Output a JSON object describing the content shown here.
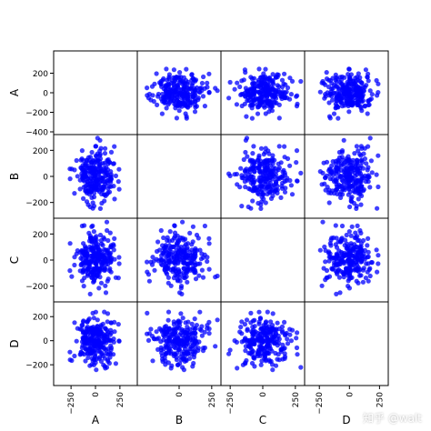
{
  "chart_data": {
    "type": "scatter",
    "kind": "scatter-matrix",
    "variables": [
      "A",
      "B",
      "C",
      "D"
    ],
    "diagonal": "empty",
    "point_color": "#0000ff",
    "point_alpha": 0.75,
    "ranges": {
      "A": [
        -400,
        400
      ],
      "B": [
        -300,
        300
      ],
      "C": [
        -300,
        300
      ],
      "D": [
        -350,
        300
      ]
    },
    "y_ticks": {
      "A": [
        "200",
        "0",
        "-200",
        "-400"
      ],
      "B": [
        "200",
        "0",
        "-200"
      ],
      "C": [
        "200",
        "0",
        "-200"
      ],
      "D": [
        "200",
        "0",
        "-200"
      ]
    },
    "x_ticks": {
      "A": [
        "-250",
        "0",
        "250"
      ],
      "B": [
        "0",
        "250"
      ],
      "C": [
        "-250",
        "0",
        "250"
      ],
      "D": [
        "-250",
        "0",
        "250"
      ]
    },
    "approx_points_per_variable": 250,
    "distribution": "normal, mean 0, std about 100"
  },
  "watermark": "知乎 @walt"
}
